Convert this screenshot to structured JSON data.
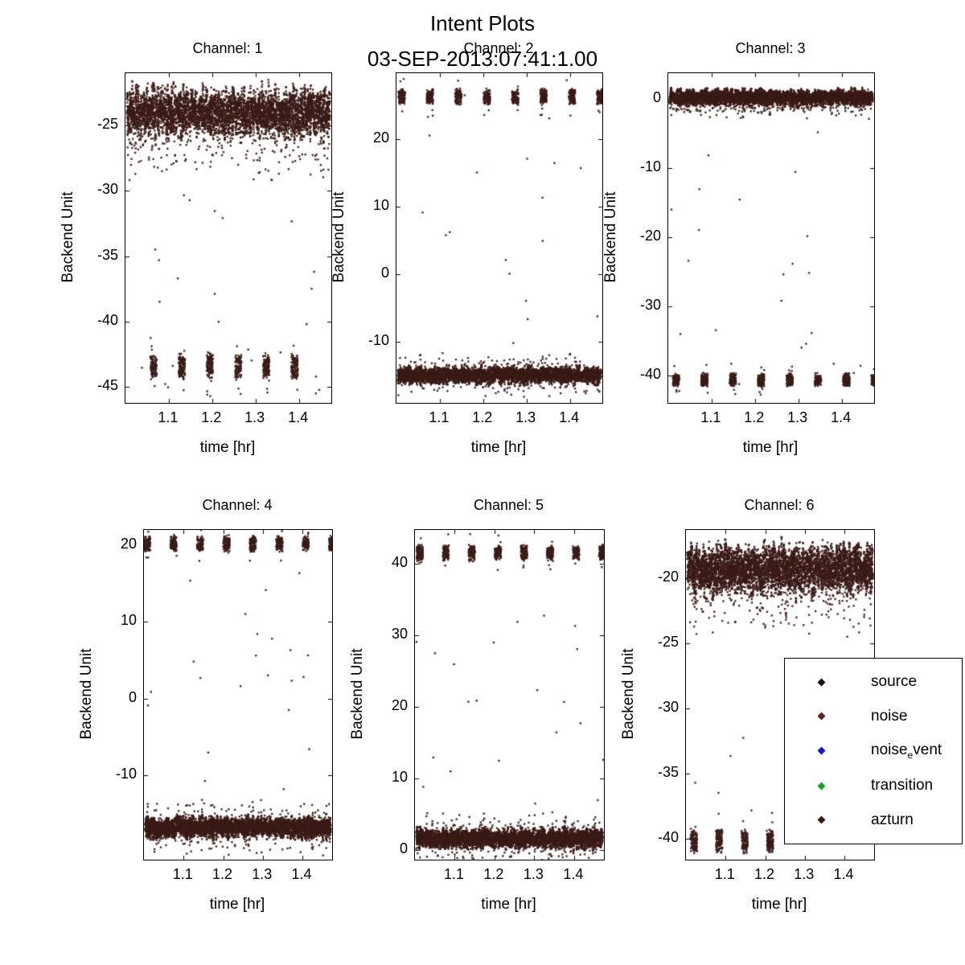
{
  "figure": {
    "title": "Intent Plots",
    "subtitle": "03-SEP-2013:07:41:1.00",
    "background": "#ffffff",
    "point_color": "#3b1b17"
  },
  "legend": {
    "items": [
      {
        "pre": "source",
        "sub": "",
        "post": "",
        "color": "#241010"
      },
      {
        "pre": "noise",
        "sub": "",
        "post": "",
        "color": "#5a2420"
      },
      {
        "pre": "noise",
        "sub": "e",
        "post": "vent",
        "color": "#1515cc"
      },
      {
        "pre": "transition",
        "sub": "",
        "post": "",
        "color": "#15a02a"
      },
      {
        "pre": "azturn",
        "sub": "",
        "post": "",
        "color": "#3b1b17"
      }
    ]
  },
  "chart_data": [
    {
      "type": "scatter",
      "title": "Channel: 1",
      "xlabel": "time [hr]",
      "ylabel": "Backend Unit",
      "xlim": [
        1.0,
        1.475
      ],
      "xticks": [
        1.1,
        1.2,
        1.3,
        1.4
      ],
      "ylim": [
        -46.2,
        -21.0
      ],
      "yticks": [
        -25,
        -30,
        -35,
        -40,
        -45
      ],
      "band": {
        "y_center": -24.0,
        "y_spread": 1.7,
        "tail_dir": -1
      },
      "clusters": {
        "y_center": -43.4,
        "y_half": 1.1,
        "x_start": 1.065,
        "period": 0.065,
        "count": 6,
        "width": 0.015
      },
      "outliers": {
        "count": 26,
        "y_min": -45.5,
        "y_max": -28.0
      }
    },
    {
      "type": "scatter",
      "title": "Channel: 2",
      "xlabel": "time [hr]",
      "ylabel": "Backend Unit",
      "xlim": [
        1.0,
        1.475
      ],
      "xticks": [
        1.1,
        1.2,
        1.3,
        1.4
      ],
      "ylim": [
        -19.0,
        29.8
      ],
      "yticks": [
        -10,
        0,
        10,
        20
      ],
      "band": {
        "y_center": -14.9,
        "y_spread": 1.1,
        "tail_dir": 0
      },
      "clusters": {
        "y_center": 26.3,
        "y_half": 1.3,
        "x_start": 1.012,
        "period": 0.0655,
        "count": 8,
        "width": 0.015
      },
      "outliers": {
        "count": 24,
        "y_min": -18.0,
        "y_max": 29.0
      }
    },
    {
      "type": "scatter",
      "title": "Channel: 3",
      "xlabel": "time [hr]",
      "ylabel": "Backend Unit",
      "xlim": [
        1.0,
        1.475
      ],
      "xticks": [
        1.1,
        1.2,
        1.3,
        1.4
      ],
      "ylim": [
        -44.0,
        3.7
      ],
      "yticks": [
        0,
        -10,
        -20,
        -30,
        -40
      ],
      "band": {
        "y_center": 0.2,
        "y_spread": 1.0,
        "tail_dir": -1
      },
      "clusters": {
        "y_center": -40.7,
        "y_half": 1.05,
        "x_start": 1.018,
        "period": 0.0655,
        "count": 8,
        "width": 0.015
      },
      "outliers": {
        "count": 22,
        "y_min": -42.0,
        "y_max": -3.0
      }
    },
    {
      "type": "scatter",
      "title": "Channel: 4",
      "xlabel": "time [hr]",
      "ylabel": "Backend Unit",
      "xlim": [
        1.0,
        1.475
      ],
      "xticks": [
        1.1,
        1.2,
        1.3,
        1.4
      ],
      "ylim": [
        -21.0,
        22.0
      ],
      "yticks": [
        20,
        10,
        0,
        -10
      ],
      "band": {
        "y_center": -16.8,
        "y_spread": 1.2,
        "tail_dir": 0
      },
      "clusters": {
        "y_center": 20.2,
        "y_half": 1.1,
        "x_start": 1.008,
        "period": 0.0668,
        "count": 8,
        "width": 0.016
      },
      "outliers": {
        "count": 22,
        "y_min": -14.5,
        "y_max": 18.0
      }
    },
    {
      "type": "scatter",
      "title": "Channel: 5",
      "xlabel": "time [hr]",
      "ylabel": "Backend Unit",
      "xlim": [
        1.0,
        1.475
      ],
      "xticks": [
        1.1,
        1.2,
        1.3,
        1.4
      ],
      "ylim": [
        -1.3,
        44.7
      ],
      "yticks": [
        40,
        30,
        20,
        10,
        0
      ],
      "band": {
        "y_center": 1.6,
        "y_spread": 1.2,
        "tail_dir": 0
      },
      "clusters": {
        "y_center": 41.5,
        "y_half": 1.2,
        "x_start": 1.012,
        "period": 0.0655,
        "count": 8,
        "width": 0.016
      },
      "outliers": {
        "count": 22,
        "y_min": 4.0,
        "y_max": 39.0
      }
    },
    {
      "type": "scatter",
      "title": "Channel: 6",
      "xlabel": "time [hr]",
      "ylabel": "Backend Unit",
      "xlim": [
        1.0,
        1.475
      ],
      "xticks": [
        1.1,
        1.2,
        1.3,
        1.4
      ],
      "ylim": [
        -41.6,
        -16.3
      ],
      "yticks": [
        -20,
        -25,
        -30,
        -35,
        -40
      ],
      "band": {
        "y_center": -19.3,
        "y_spread": 1.7,
        "tail_dir": -1
      },
      "clusters": {
        "y_center": -40.2,
        "y_half": 1.0,
        "x_start": 1.02,
        "period": 0.064,
        "count": 4,
        "width": 0.016
      },
      "outliers": {
        "count": 18,
        "y_min": -38.0,
        "y_max": -23.0
      }
    }
  ]
}
